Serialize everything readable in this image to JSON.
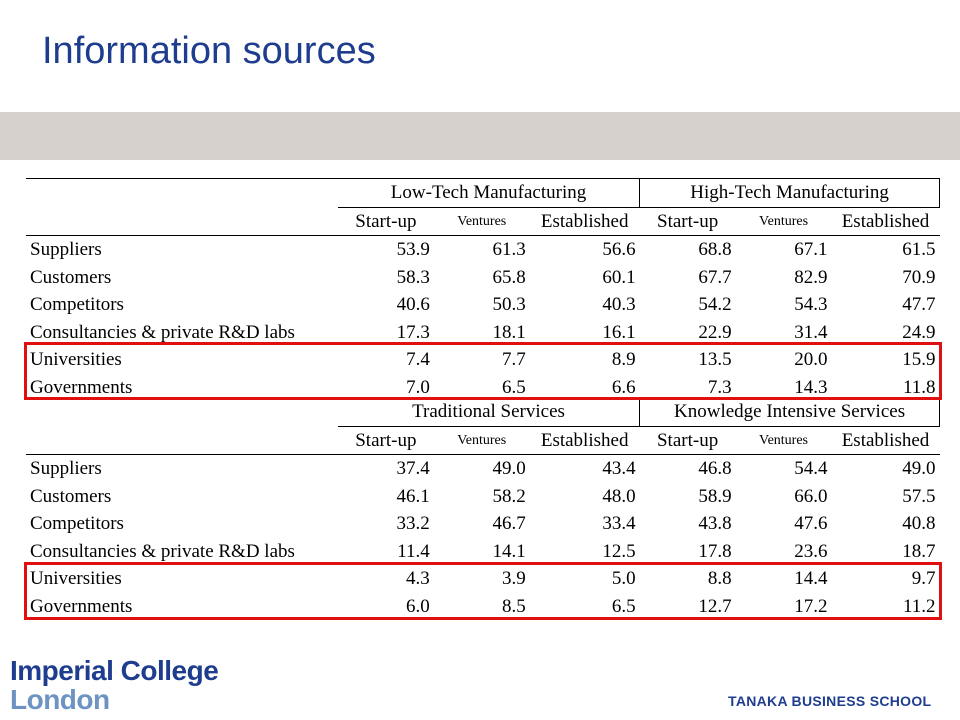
{
  "title": "Information sources",
  "logo": {
    "line1": "Imperial College",
    "line2": "London"
  },
  "school": "TANAKA BUSINESS SCHOOL",
  "col_labels": [
    "Start-up",
    "Ventures",
    "Established"
  ],
  "tables": [
    {
      "group1": "Low-Tech Manufacturing",
      "group2": "High-Tech Manufacturing",
      "rows": [
        {
          "label": "Suppliers",
          "values": [
            "53.9",
            "61.3",
            "56.6",
            "68.8",
            "67.1",
            "61.5"
          ]
        },
        {
          "label": "Customers",
          "values": [
            "58.3",
            "65.8",
            "60.1",
            "67.7",
            "82.9",
            "70.9"
          ]
        },
        {
          "label": "Competitors",
          "values": [
            "40.6",
            "50.3",
            "40.3",
            "54.2",
            "54.3",
            "47.7"
          ]
        },
        {
          "label": "Consultancies & private R&D labs",
          "values": [
            "17.3",
            "18.1",
            "16.1",
            "22.9",
            "31.4",
            "24.9"
          ]
        },
        {
          "label": "Universities",
          "values": [
            "7.4",
            "7.7",
            "8.9",
            "13.5",
            "20.0",
            "15.9"
          ]
        },
        {
          "label": "Governments",
          "values": [
            "7.0",
            "6.5",
            "6.6",
            "7.3",
            "14.3",
            "11.8"
          ]
        }
      ]
    },
    {
      "group1": "Traditional Services",
      "group2": "Knowledge Intensive Services",
      "rows": [
        {
          "label": "Suppliers",
          "values": [
            "37.4",
            "49.0",
            "43.4",
            "46.8",
            "54.4",
            "49.0"
          ]
        },
        {
          "label": "Customers",
          "values": [
            "46.1",
            "58.2",
            "48.0",
            "58.9",
            "66.0",
            "57.5"
          ]
        },
        {
          "label": "Competitors",
          "values": [
            "33.2",
            "46.7",
            "33.4",
            "43.8",
            "47.6",
            "40.8"
          ]
        },
        {
          "label": "Consultancies & private R&D labs",
          "values": [
            "11.4",
            "14.1",
            "12.5",
            "17.8",
            "23.6",
            "18.7"
          ]
        },
        {
          "label": "Universities",
          "values": [
            "4.3",
            "3.9",
            "5.0",
            "8.8",
            "14.4",
            "9.7"
          ]
        },
        {
          "label": "Governments",
          "values": [
            "6.0",
            "8.5",
            "6.5",
            "12.7",
            "17.2",
            "11.2"
          ]
        }
      ]
    }
  ],
  "colors": {
    "title": "#1f3d8f",
    "highlight": "#e01010",
    "band": "#d6d1cc"
  }
}
